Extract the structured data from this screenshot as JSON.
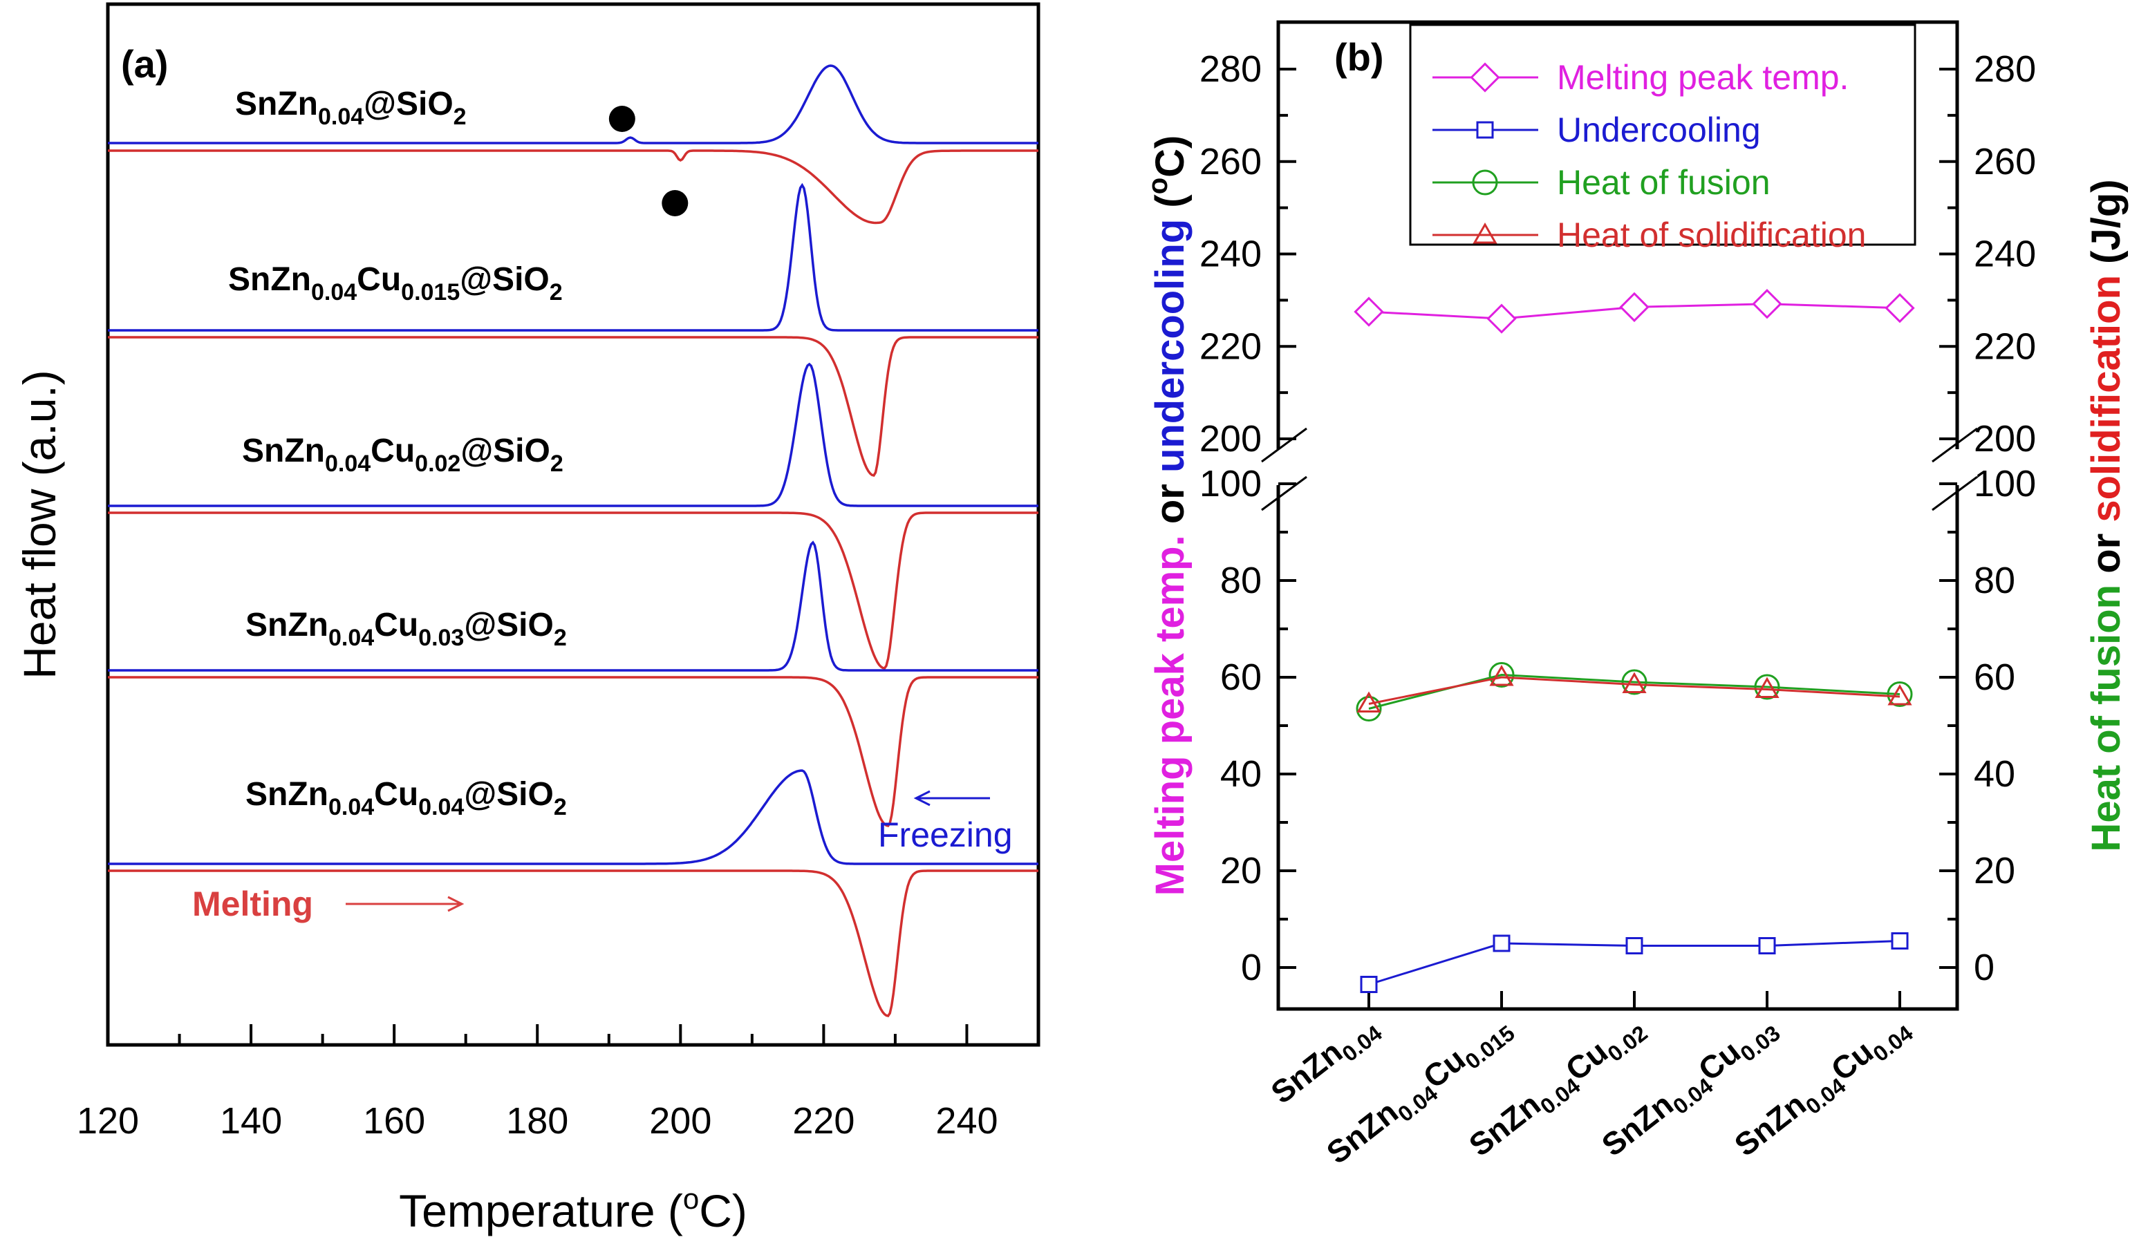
{
  "chart_data": [
    {
      "panel": "(a)",
      "type": "line",
      "xlabel": "Temperature (°C)",
      "xlabel_parts": [
        "Temperature (",
        "o",
        "C)"
      ],
      "ylabel": "Heat flow (a.u.)",
      "xlim": [
        120,
        250
      ],
      "xticks": [
        "120",
        "140",
        "160",
        "180",
        "200",
        "220",
        "240"
      ],
      "samples": [
        {
          "label_parts": [
            "SnZn",
            "0.04",
            "@SiO",
            "2"
          ],
          "freezing_peak": 221,
          "melting_peak": 228,
          "dots": [
            193,
            200
          ]
        },
        {
          "label_parts": [
            "SnZn",
            "0.04",
            "Cu",
            "0.015",
            "@SiO",
            "2"
          ],
          "freezing_peak": 217,
          "melting_peak": 227
        },
        {
          "label_parts": [
            "SnZn",
            "0.04",
            "Cu",
            "0.02",
            "@SiO",
            "2"
          ],
          "freezing_peak": 218,
          "melting_peak": 228.5
        },
        {
          "label_parts": [
            "SnZn",
            "0.04",
            "Cu",
            "0.03",
            "@SiO",
            "2"
          ],
          "freezing_peak": 218.5,
          "melting_peak": 229
        },
        {
          "label_parts": [
            "SnZn",
            "0.04",
            "Cu",
            "0.04",
            "@SiO",
            "2"
          ],
          "freezing_peak": 217,
          "melting_peak": 229
        }
      ],
      "annotations": {
        "freezing": "Freezing",
        "melting": "Melting"
      },
      "colors": {
        "freezing": "#1b1bd1",
        "melting": "#d22f2f"
      }
    },
    {
      "panel": "(b)",
      "type": "line",
      "categories": [
        [
          "SnZn",
          "0.04"
        ],
        [
          "SnZn",
          "0.04",
          "Cu",
          "0.015"
        ],
        [
          "SnZn",
          "0.04",
          "Cu",
          "0.02"
        ],
        [
          "SnZn",
          "0.04",
          "Cu",
          "0.03"
        ],
        [
          "SnZn",
          "0.04",
          "Cu",
          "0.04"
        ]
      ],
      "y_upper_range": [
        200,
        290
      ],
      "y_lower_range": [
        -8,
        100
      ],
      "yticks_upper": [
        "280",
        "260",
        "240",
        "220",
        "200"
      ],
      "yticks_lower": [
        "100",
        "80",
        "60",
        "40",
        "20",
        "0"
      ],
      "ylabel_left": [
        {
          "text": "Melting peak temp.",
          "color": "#e020e0"
        },
        {
          "text": " or ",
          "color": "#000000"
        },
        {
          "text": "undercooling",
          "color": "#1b1bd1"
        },
        {
          "text": " (",
          "color": "#000000"
        },
        {
          "text": "o",
          "color": "#000000"
        },
        {
          "text": "C)",
          "color": "#000000"
        }
      ],
      "ylabel_right": [
        {
          "text": "Heat of fusion",
          "color": "#20a020"
        },
        {
          "text": " or ",
          "color": "#000000"
        },
        {
          "text": "solidification",
          "color": "#e02020"
        },
        {
          "text": " (J/g)",
          "color": "#000000"
        }
      ],
      "series": [
        {
          "name": "Melting peak temp.",
          "marker": "diamond",
          "color": "#e020e0",
          "values": [
            227.5,
            226,
            228.5,
            229.2,
            228.3
          ]
        },
        {
          "name": "Undercooling",
          "marker": "square",
          "color": "#1b1bd1",
          "values": [
            -3.5,
            5,
            4.5,
            4.5,
            5.5
          ]
        },
        {
          "name": "Heat of fusion",
          "marker": "circle",
          "color": "#20a020",
          "values": [
            53.5,
            60.5,
            59,
            58,
            56.5
          ]
        },
        {
          "name": "Heat of solidification",
          "marker": "triangle",
          "color": "#d22f2f",
          "values": [
            54.5,
            60,
            58.5,
            57.5,
            56
          ]
        }
      ]
    }
  ]
}
